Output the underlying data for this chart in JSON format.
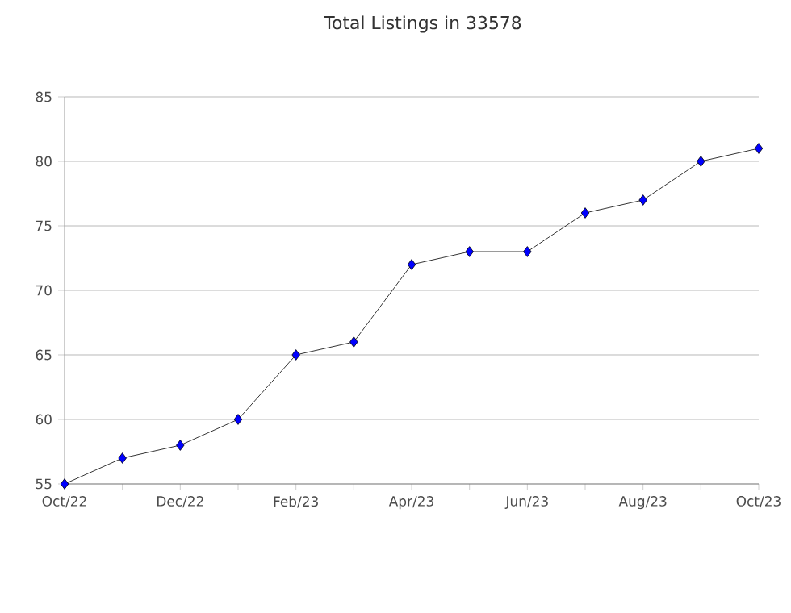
{
  "chart_data": {
    "type": "line",
    "title": "Total Listings in 33578",
    "categories": [
      "Oct/22",
      null,
      "Dec/22",
      null,
      "Feb/23",
      null,
      "Apr/23",
      null,
      "Jun/23",
      null,
      "Aug/23",
      null,
      "Oct/23"
    ],
    "series": [
      {
        "color": "#0000ff",
        "values": [
          55,
          57,
          58,
          60,
          65,
          66,
          72,
          73,
          73,
          76,
          77,
          80,
          81
        ]
      }
    ],
    "ylim": [
      55,
      85
    ],
    "yticks": [
      55,
      60,
      65,
      70,
      75,
      80,
      85
    ],
    "grid": "y",
    "marker": "diamond",
    "line_style": "solid"
  }
}
